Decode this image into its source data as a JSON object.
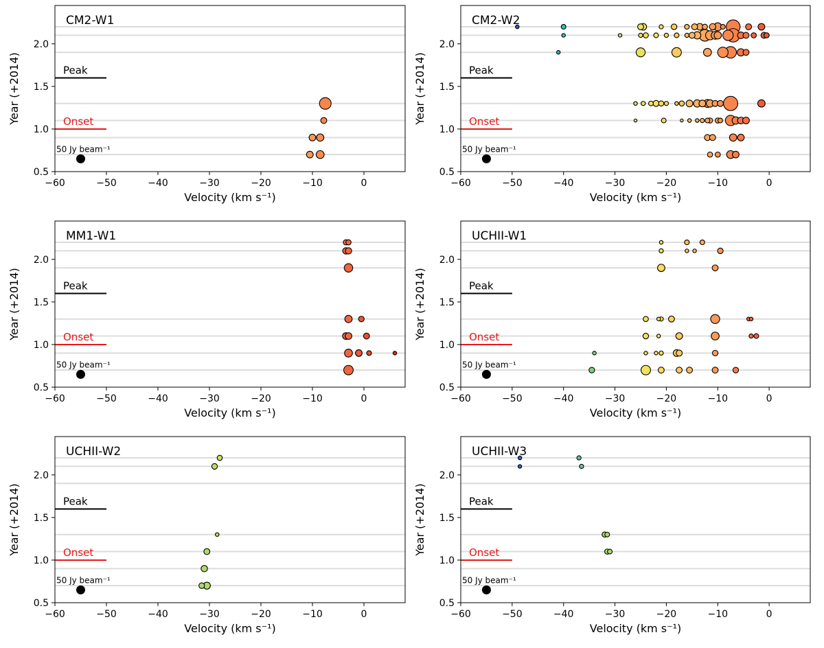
{
  "chart_data": {
    "type": "scatter",
    "xlim": [
      -60,
      8
    ],
    "ylim": [
      0.5,
      2.45
    ],
    "x_ticks": [
      -60,
      -50,
      -40,
      -30,
      -20,
      -10,
      0
    ],
    "x_tick_labels": [
      "−60",
      "−50",
      "−40",
      "−30",
      "−20",
      "−10",
      "0"
    ],
    "y_ticks": [
      0.5,
      1.0,
      1.5,
      2.0
    ],
    "y_tick_labels": [
      "0.5",
      "1.0",
      "1.5",
      "2.0"
    ],
    "xlabel": "Velocity (km s⁻¹)",
    "ylabel": "Year (+2014)",
    "epoch_lines": [
      0.7,
      0.9,
      1.1,
      1.3,
      1.9,
      2.1,
      2.2
    ],
    "markers": {
      "peak": {
        "label": "Peak",
        "y": 1.6,
        "x_range": [
          -60,
          -50
        ],
        "color": "#000000"
      },
      "onset": {
        "label": "Onset",
        "y": 1.0,
        "x_range": [
          -60,
          -50
        ],
        "color": "#e41a1c"
      },
      "beam": {
        "label": "50 Jy beam⁻¹",
        "x": -55,
        "y": 0.65,
        "flux": 50
      }
    },
    "color_scale": {
      "vmin": -50,
      "vmax": 5,
      "stops": [
        "#3b4cc0",
        "#35b7c8",
        "#a6d96a",
        "#ffe45c",
        "#fdae61",
        "#f46d43",
        "#d73027"
      ]
    },
    "panels": [
      {
        "name": "CM2-W1",
        "points": [
          [
            -7.5,
            1.3,
            30
          ],
          [
            -7.8,
            1.1,
            8
          ],
          [
            -10,
            0.9,
            10
          ],
          [
            -8.5,
            0.9,
            12
          ],
          [
            -10.5,
            0.7,
            10
          ],
          [
            -8.5,
            0.7,
            14
          ]
        ]
      },
      {
        "name": "CM2-W2",
        "points": [
          [
            -49,
            2.2,
            3
          ],
          [
            -40,
            2.2,
            5
          ],
          [
            -25,
            2.2,
            8
          ],
          [
            -24.5,
            2.2,
            10
          ],
          [
            -21,
            2.2,
            4
          ],
          [
            -18.5,
            2.2,
            7
          ],
          [
            -16,
            2.2,
            5
          ],
          [
            -14.5,
            2.2,
            8
          ],
          [
            -13.5,
            2.2,
            10
          ],
          [
            -12.5,
            2.2,
            6
          ],
          [
            -11,
            2.2,
            9
          ],
          [
            -10,
            2.2,
            14
          ],
          [
            -9,
            2.2,
            5
          ],
          [
            -7,
            2.2,
            42
          ],
          [
            -4,
            2.2,
            8
          ],
          [
            -1.5,
            2.2,
            10
          ],
          [
            -40,
            2.1,
            3
          ],
          [
            -29,
            2.1,
            3
          ],
          [
            -25,
            2.1,
            4
          ],
          [
            -24,
            2.1,
            6
          ],
          [
            -22,
            2.1,
            5
          ],
          [
            -20,
            2.1,
            4
          ],
          [
            -18,
            2.1,
            5
          ],
          [
            -16,
            2.1,
            4
          ],
          [
            -15,
            2.1,
            8
          ],
          [
            -14,
            2.1,
            12
          ],
          [
            -12.5,
            2.1,
            30
          ],
          [
            -11.5,
            2.1,
            18
          ],
          [
            -10.5,
            2.1,
            14
          ],
          [
            -10,
            2.1,
            12
          ],
          [
            -8,
            2.1,
            24
          ],
          [
            -7,
            2.1,
            40
          ],
          [
            -5.5,
            2.1,
            10
          ],
          [
            -4.5,
            2.1,
            8
          ],
          [
            -3,
            2.1,
            6
          ],
          [
            -1,
            2.1,
            8
          ],
          [
            -0.5,
            2.1,
            6
          ],
          [
            -41,
            1.9,
            3
          ],
          [
            -25,
            1.9,
            18
          ],
          [
            -18,
            1.9,
            20
          ],
          [
            -12,
            1.9,
            14
          ],
          [
            -9,
            1.9,
            24
          ],
          [
            -7.5,
            1.9,
            30
          ],
          [
            -5.5,
            1.9,
            12
          ],
          [
            -4.5,
            1.9,
            8
          ],
          [
            -26,
            1.3,
            3
          ],
          [
            -24.5,
            1.3,
            4
          ],
          [
            -23,
            1.3,
            5
          ],
          [
            -22,
            1.3,
            8
          ],
          [
            -21,
            1.3,
            6
          ],
          [
            -20,
            1.3,
            4
          ],
          [
            -18,
            1.3,
            3
          ],
          [
            -17,
            1.3,
            6
          ],
          [
            -15.5,
            1.3,
            10
          ],
          [
            -14,
            1.3,
            12
          ],
          [
            -13,
            1.3,
            10
          ],
          [
            -12,
            1.3,
            14
          ],
          [
            -11.5,
            1.3,
            12
          ],
          [
            -10.5,
            1.3,
            8
          ],
          [
            -9.5,
            1.3,
            8
          ],
          [
            -7.5,
            1.3,
            45
          ],
          [
            -1.5,
            1.3,
            12
          ],
          [
            -26,
            1.1,
            2
          ],
          [
            -20.5,
            1.1,
            5
          ],
          [
            -17,
            1.1,
            2
          ],
          [
            -15.5,
            1.1,
            3
          ],
          [
            -14,
            1.1,
            3
          ],
          [
            -13,
            1.1,
            4
          ],
          [
            -12,
            1.1,
            5
          ],
          [
            -11.5,
            1.1,
            6
          ],
          [
            -10,
            1.1,
            6
          ],
          [
            -9.5,
            1.1,
            5
          ],
          [
            -7.5,
            1.1,
            24
          ],
          [
            -6.5,
            1.1,
            12
          ],
          [
            -5.5,
            1.1,
            10
          ],
          [
            -4.5,
            1.1,
            10
          ],
          [
            -12,
            0.9,
            8
          ],
          [
            -11,
            0.9,
            8
          ],
          [
            -7,
            0.9,
            12
          ],
          [
            -5.5,
            0.9,
            10
          ],
          [
            -11.5,
            0.7,
            6
          ],
          [
            -10,
            0.7,
            6
          ],
          [
            -7.5,
            0.7,
            14
          ],
          [
            -6.5,
            0.7,
            10
          ]
        ]
      },
      {
        "name": "MM1-W1",
        "points": [
          [
            -3.5,
            2.2,
            6
          ],
          [
            -3,
            2.2,
            6
          ],
          [
            -3.5,
            2.1,
            9
          ],
          [
            -3,
            2.1,
            9
          ],
          [
            -3,
            1.9,
            16
          ],
          [
            -3,
            1.3,
            12
          ],
          [
            -0.5,
            1.3,
            7
          ],
          [
            -3.5,
            1.1,
            10
          ],
          [
            -3,
            1.1,
            10
          ],
          [
            0.5,
            1.1,
            8
          ],
          [
            -3,
            0.9,
            14
          ],
          [
            -1,
            0.9,
            10
          ],
          [
            1,
            0.9,
            5
          ],
          [
            6,
            0.9,
            3
          ],
          [
            -3,
            0.7,
            20
          ]
        ]
      },
      {
        "name": "UCHII-W1",
        "points": [
          [
            -21,
            2.2,
            3
          ],
          [
            -16,
            2.2,
            5
          ],
          [
            -13,
            2.2,
            5
          ],
          [
            -21,
            2.1,
            4
          ],
          [
            -16,
            2.1,
            3
          ],
          [
            -14.5,
            2.1,
            3
          ],
          [
            -9.5,
            2.1,
            7
          ],
          [
            -21,
            1.9,
            12
          ],
          [
            -10.5,
            1.9,
            8
          ],
          [
            -24,
            1.3,
            6
          ],
          [
            -21.5,
            1.3,
            3
          ],
          [
            -21,
            1.3,
            4
          ],
          [
            -19,
            1.3,
            8
          ],
          [
            -10.5,
            1.3,
            18
          ],
          [
            -4,
            1.3,
            3
          ],
          [
            -3.5,
            1.3,
            3
          ],
          [
            -24,
            1.1,
            7
          ],
          [
            -21.5,
            1.1,
            3
          ],
          [
            -17.5,
            1.1,
            10
          ],
          [
            -10.5,
            1.1,
            14
          ],
          [
            -3.5,
            1.1,
            4
          ],
          [
            -2.5,
            1.1,
            5
          ],
          [
            -34,
            0.9,
            3
          ],
          [
            -24,
            0.9,
            3
          ],
          [
            -22,
            0.9,
            3
          ],
          [
            -21,
            0.9,
            4
          ],
          [
            -18,
            0.9,
            10
          ],
          [
            -17.5,
            0.9,
            8
          ],
          [
            -10.5,
            0.9,
            7
          ],
          [
            -34.5,
            0.7,
            7
          ],
          [
            -24,
            0.7,
            20
          ],
          [
            -21,
            0.7,
            8
          ],
          [
            -17.5,
            0.7,
            8
          ],
          [
            -15.5,
            0.7,
            8
          ],
          [
            -10.5,
            0.7,
            8
          ],
          [
            -6.5,
            0.7,
            7
          ]
        ]
      },
      {
        "name": "UCHII-W2",
        "points": [
          [
            -28,
            2.2,
            6
          ],
          [
            -29,
            2.1,
            7
          ],
          [
            -28.5,
            1.3,
            3
          ],
          [
            -30.5,
            1.1,
            8
          ],
          [
            -31,
            0.9,
            9
          ],
          [
            -31.5,
            0.7,
            7
          ],
          [
            -30.5,
            0.7,
            11
          ]
        ]
      },
      {
        "name": "UCHII-W3",
        "points": [
          [
            -48.5,
            2.2,
            3
          ],
          [
            -37,
            2.2,
            4
          ],
          [
            -48.5,
            2.1,
            3
          ],
          [
            -36.5,
            2.1,
            4
          ],
          [
            -32,
            1.3,
            6
          ],
          [
            -31.5,
            1.3,
            5
          ],
          [
            -31.5,
            1.1,
            6
          ],
          [
            -31,
            1.1,
            5
          ]
        ]
      }
    ]
  }
}
